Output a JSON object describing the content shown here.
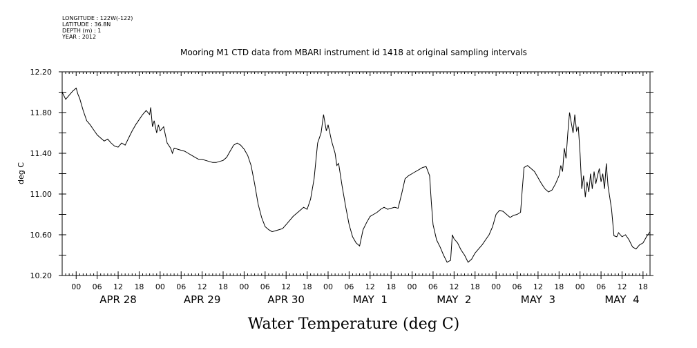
{
  "header": {
    "longitude": "LONGITUDE : 122W(-122)",
    "latitude": "LATITUDE : 36.8N",
    "depth": "DEPTH (m) : 1",
    "year": "YEAR : 2012"
  },
  "chart_data": {
    "type": "line",
    "title": "Mooring M1 CTD data from MBARI instrument id 1418 at original sampling intervals",
    "xlabel": "Water Temperature (deg C)",
    "ylabel": "deg C",
    "ylim": [
      10.2,
      12.2
    ],
    "yticks": [
      "10.20",
      "10.60",
      "11.00",
      "11.40",
      "11.80",
      "12.20"
    ],
    "xlim_hours": [
      -4,
      164
    ],
    "hour_ticks": [
      "00",
      "06",
      "12",
      "18",
      "00",
      "06",
      "12",
      "18",
      "00",
      "06",
      "12",
      "18",
      "00",
      "06",
      "12",
      "18",
      "00",
      "06",
      "12",
      "18",
      "00",
      "06",
      "12",
      "18",
      "00",
      "06",
      "12",
      "18"
    ],
    "day_labels": [
      "APR 28",
      "APR 29",
      "APR 30",
      "MAY  1",
      "MAY  2",
      "MAY  3",
      "MAY  4"
    ],
    "grid": false,
    "series": [
      {
        "points": [
          [
            -4,
            12.0
          ],
          [
            -3,
            11.93
          ],
          [
            -2,
            11.97
          ],
          [
            -1,
            12.01
          ],
          [
            0,
            12.04
          ],
          [
            0.5,
            11.98
          ],
          [
            1,
            11.94
          ],
          [
            2,
            11.82
          ],
          [
            3,
            11.72
          ],
          [
            4,
            11.68
          ],
          [
            5,
            11.63
          ],
          [
            6,
            11.58
          ],
          [
            7,
            11.55
          ],
          [
            8,
            11.52
          ],
          [
            9,
            11.54
          ],
          [
            10,
            11.5
          ],
          [
            11,
            11.47
          ],
          [
            12,
            11.46
          ],
          [
            13,
            11.5
          ],
          [
            14,
            11.48
          ],
          [
            15,
            11.55
          ],
          [
            16,
            11.62
          ],
          [
            17,
            11.68
          ],
          [
            18,
            11.73
          ],
          [
            19,
            11.78
          ],
          [
            20,
            11.82
          ],
          [
            21,
            11.78
          ],
          [
            21.3,
            11.85
          ],
          [
            21.8,
            11.66
          ],
          [
            22.3,
            11.72
          ],
          [
            23,
            11.6
          ],
          [
            23.5,
            11.68
          ],
          [
            24,
            11.62
          ],
          [
            25,
            11.66
          ],
          [
            25.5,
            11.58
          ],
          [
            26,
            11.5
          ],
          [
            27,
            11.45
          ],
          [
            27.5,
            11.4
          ],
          [
            28,
            11.45
          ],
          [
            29,
            11.44
          ],
          [
            30,
            11.43
          ],
          [
            31,
            11.42
          ],
          [
            32,
            11.4
          ],
          [
            33,
            11.38
          ],
          [
            34,
            11.36
          ],
          [
            35,
            11.34
          ],
          [
            36,
            11.34
          ],
          [
            37,
            11.33
          ],
          [
            38,
            11.32
          ],
          [
            39,
            11.31
          ],
          [
            40,
            11.31
          ],
          [
            41,
            11.32
          ],
          [
            42,
            11.33
          ],
          [
            43,
            11.36
          ],
          [
            44,
            11.42
          ],
          [
            45,
            11.48
          ],
          [
            46,
            11.5
          ],
          [
            47,
            11.48
          ],
          [
            48,
            11.44
          ],
          [
            49,
            11.38
          ],
          [
            50,
            11.28
          ],
          [
            51,
            11.1
          ],
          [
            52,
            10.9
          ],
          [
            53,
            10.77
          ],
          [
            54,
            10.68
          ],
          [
            55,
            10.65
          ],
          [
            56,
            10.63
          ],
          [
            57,
            10.64
          ],
          [
            58,
            10.65
          ],
          [
            59,
            10.66
          ],
          [
            60,
            10.7
          ],
          [
            61,
            10.74
          ],
          [
            62,
            10.78
          ],
          [
            63,
            10.81
          ],
          [
            64,
            10.84
          ],
          [
            65,
            10.87
          ],
          [
            66,
            10.85
          ],
          [
            67,
            10.95
          ],
          [
            68,
            11.15
          ],
          [
            69,
            11.5
          ],
          [
            70,
            11.6
          ],
          [
            70.7,
            11.78
          ],
          [
            71.5,
            11.62
          ],
          [
            72,
            11.68
          ],
          [
            73,
            11.52
          ],
          [
            74,
            11.4
          ],
          [
            74.5,
            11.28
          ],
          [
            75,
            11.3
          ],
          [
            76,
            11.08
          ],
          [
            77,
            10.88
          ],
          [
            78,
            10.7
          ],
          [
            79,
            10.58
          ],
          [
            80,
            10.52
          ],
          [
            81,
            10.49
          ],
          [
            82,
            10.65
          ],
          [
            83,
            10.72
          ],
          [
            84,
            10.78
          ],
          [
            85,
            10.8
          ],
          [
            86,
            10.82
          ],
          [
            87,
            10.85
          ],
          [
            88,
            10.87
          ],
          [
            89,
            10.85
          ],
          [
            90,
            10.86
          ],
          [
            91,
            10.87
          ],
          [
            92,
            10.86
          ],
          [
            93,
            11.0
          ],
          [
            94,
            11.15
          ],
          [
            95,
            11.18
          ],
          [
            96,
            11.2
          ],
          [
            97,
            11.22
          ],
          [
            98,
            11.24
          ],
          [
            99,
            11.26
          ],
          [
            100,
            11.27
          ],
          [
            101,
            11.18
          ],
          [
            101.5,
            10.92
          ],
          [
            102,
            10.7
          ],
          [
            103,
            10.55
          ],
          [
            104,
            10.48
          ],
          [
            105,
            10.4
          ],
          [
            106,
            10.33
          ],
          [
            107,
            10.35
          ],
          [
            107.5,
            10.6
          ],
          [
            108,
            10.56
          ],
          [
            109,
            10.52
          ],
          [
            110,
            10.45
          ],
          [
            111,
            10.4
          ],
          [
            112,
            10.33
          ],
          [
            113,
            10.36
          ],
          [
            114,
            10.42
          ],
          [
            115,
            10.46
          ],
          [
            116,
            10.5
          ],
          [
            117,
            10.55
          ],
          [
            118,
            10.6
          ],
          [
            119,
            10.68
          ],
          [
            120,
            10.8
          ],
          [
            121,
            10.84
          ],
          [
            122,
            10.83
          ],
          [
            123,
            10.8
          ],
          [
            124,
            10.77
          ],
          [
            125,
            10.79
          ],
          [
            126,
            10.8
          ],
          [
            127,
            10.82
          ],
          [
            127.5,
            11.05
          ],
          [
            128,
            11.26
          ],
          [
            129,
            11.28
          ],
          [
            130,
            11.25
          ],
          [
            131,
            11.22
          ],
          [
            132,
            11.16
          ],
          [
            133,
            11.1
          ],
          [
            134,
            11.05
          ],
          [
            135,
            11.02
          ],
          [
            136,
            11.04
          ],
          [
            137,
            11.1
          ],
          [
            138,
            11.18
          ],
          [
            138.5,
            11.28
          ],
          [
            139,
            11.22
          ],
          [
            139.5,
            11.45
          ],
          [
            140,
            11.35
          ],
          [
            140.5,
            11.6
          ],
          [
            141,
            11.8
          ],
          [
            141.5,
            11.7
          ],
          [
            142,
            11.6
          ],
          [
            142.5,
            11.78
          ],
          [
            143,
            11.62
          ],
          [
            143.5,
            11.66
          ],
          [
            144,
            11.4
          ],
          [
            144.5,
            11.05
          ],
          [
            145,
            11.18
          ],
          [
            145.5,
            10.97
          ],
          [
            146,
            11.12
          ],
          [
            146.5,
            11.02
          ],
          [
            147,
            11.2
          ],
          [
            147.5,
            11.05
          ],
          [
            148,
            11.22
          ],
          [
            148.5,
            11.1
          ],
          [
            149,
            11.18
          ],
          [
            149.5,
            11.25
          ],
          [
            150,
            11.12
          ],
          [
            150.5,
            11.2
          ],
          [
            151,
            11.05
          ],
          [
            151.5,
            11.3
          ],
          [
            152,
            11.08
          ],
          [
            153,
            10.85
          ],
          [
            153.7,
            10.59
          ],
          [
            154.5,
            10.58
          ],
          [
            155,
            10.62
          ],
          [
            156,
            10.58
          ],
          [
            157,
            10.6
          ],
          [
            158,
            10.55
          ],
          [
            159,
            10.48
          ],
          [
            160,
            10.46
          ],
          [
            161,
            10.5
          ],
          [
            162,
            10.52
          ],
          [
            163,
            10.58
          ],
          [
            164,
            10.63
          ]
        ]
      }
    ]
  }
}
